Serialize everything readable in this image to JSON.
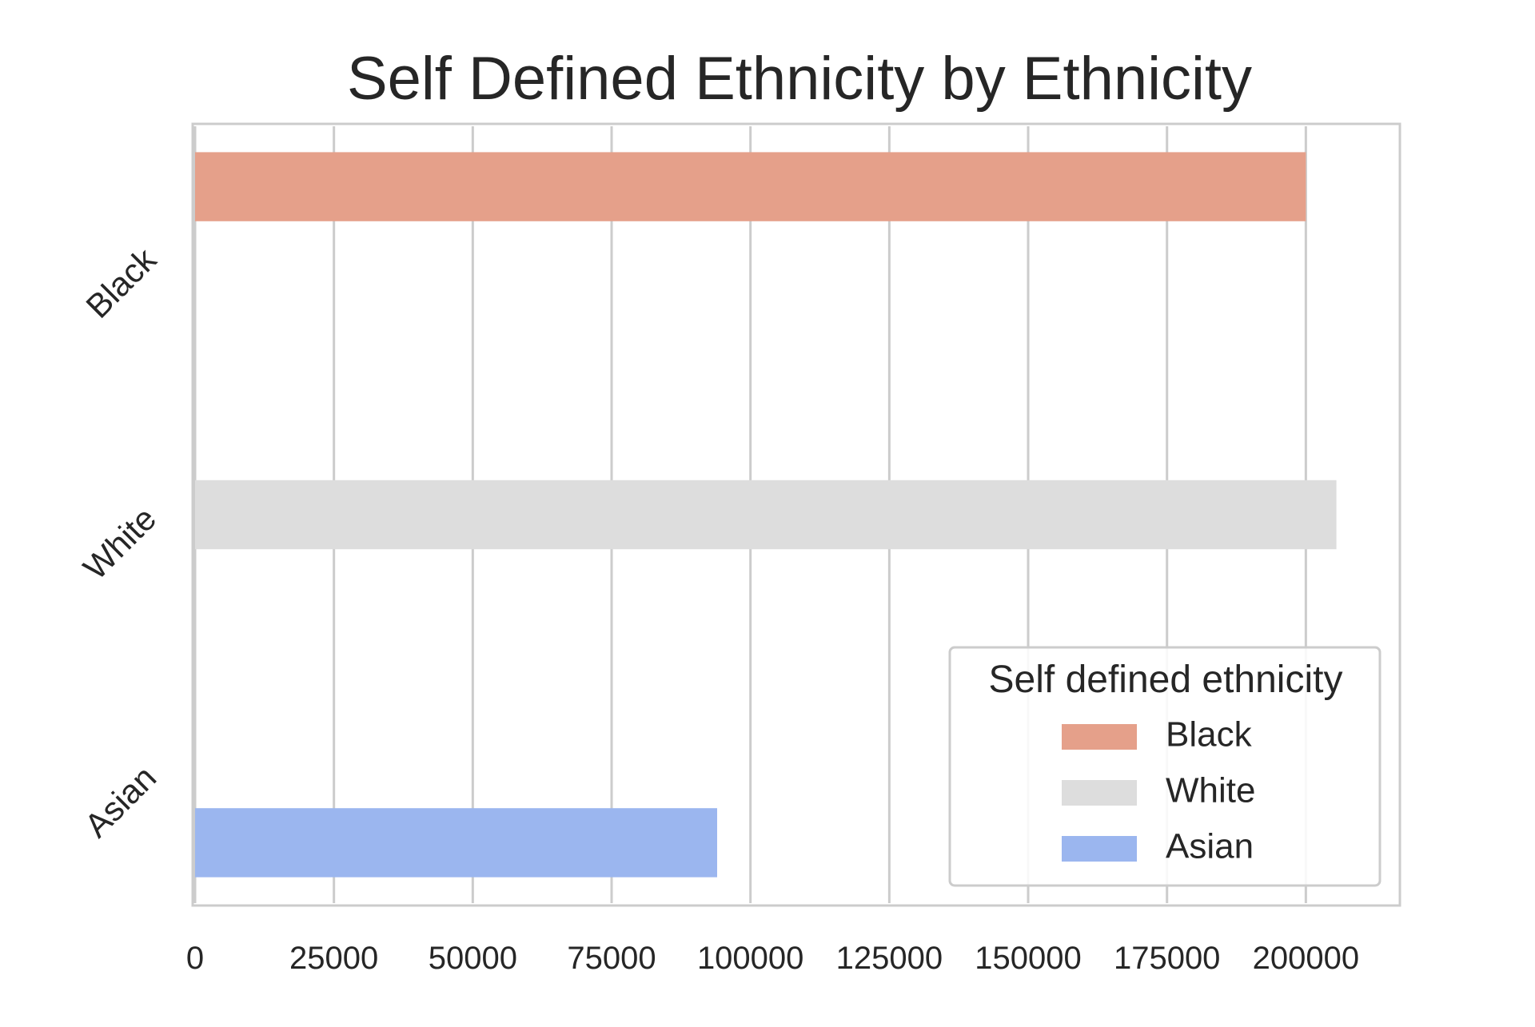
{
  "chart_data": {
    "type": "bar",
    "orientation": "horizontal",
    "title": "Self Defined Ethnicity by Ethnicity",
    "xlabel": "",
    "ylabel": "",
    "categories": [
      "Black",
      "White",
      "Asian"
    ],
    "series": [
      {
        "name": "Black",
        "color": "#e5a08a",
        "values": [
          200000,
          null,
          null
        ]
      },
      {
        "name": "White",
        "color": "#dddddd",
        "values": [
          null,
          205500,
          null
        ]
      },
      {
        "name": "Asian",
        "color": "#9bb6ef",
        "values": [
          null,
          null,
          94000
        ]
      }
    ],
    "xlim": [
      0,
      216500
    ],
    "xticks": [
      0,
      25000,
      50000,
      75000,
      100000,
      125000,
      150000,
      175000,
      200000
    ],
    "grid": "vertical",
    "legend": {
      "title": "Self defined ethnicity",
      "placement": "lower-right"
    }
  }
}
